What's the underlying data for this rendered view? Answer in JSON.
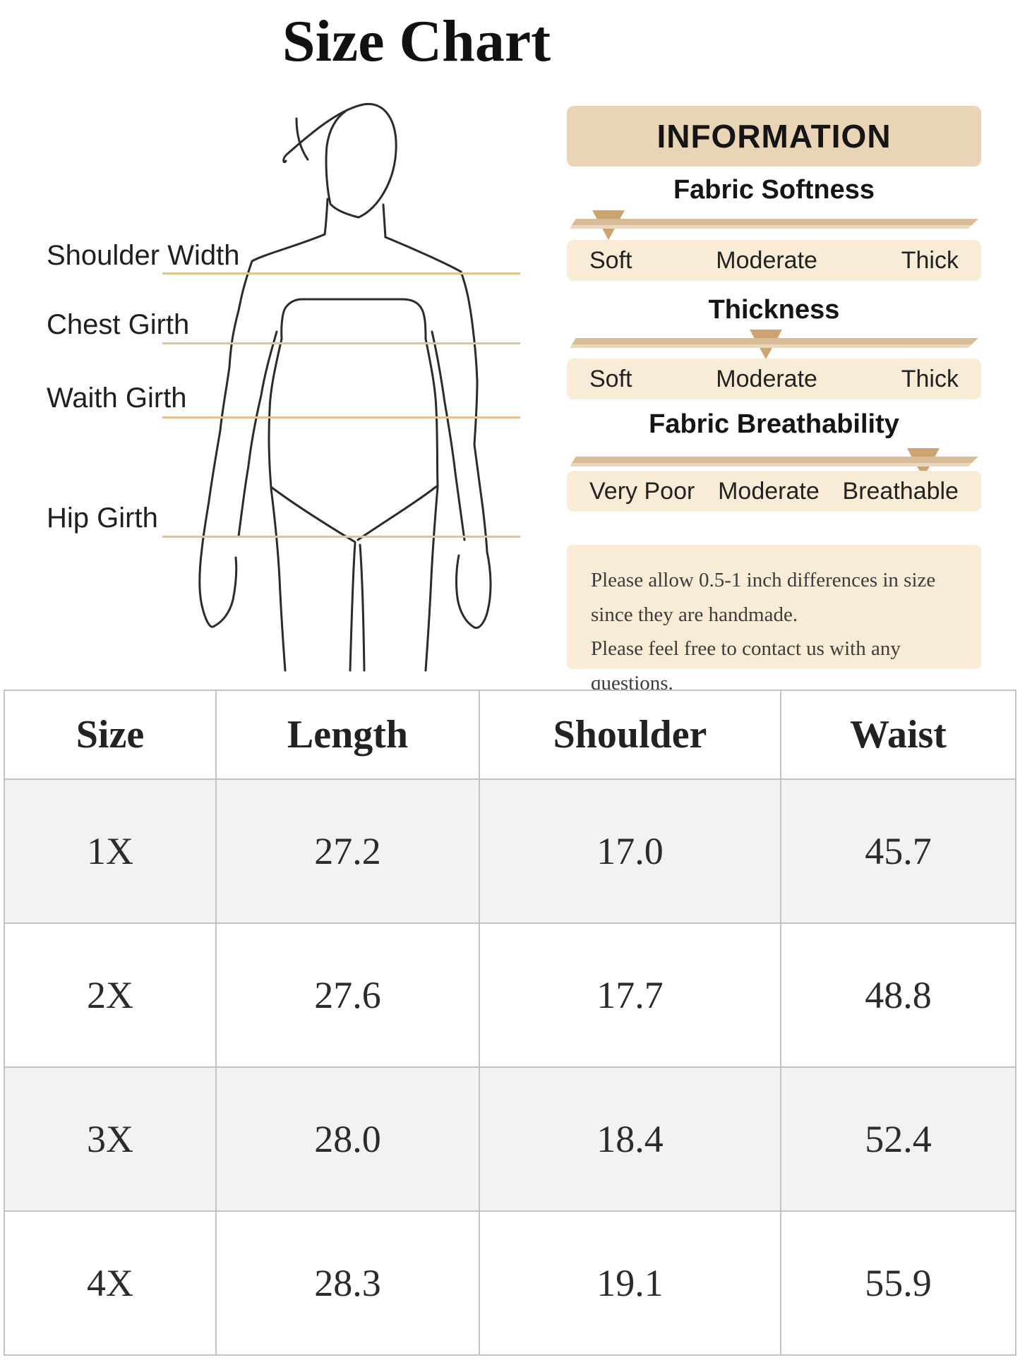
{
  "page": {
    "title": "Size Chart"
  },
  "figure": {
    "labels": [
      {
        "text": "Shoulder Width"
      },
      {
        "text": "Chest Girth"
      },
      {
        "text": "Waith Girth"
      },
      {
        "text": "Hip Girth"
      }
    ]
  },
  "info_panel": {
    "header": "INFORMATION",
    "sections": [
      {
        "title": "Fabric Softness",
        "labels": [
          "Soft",
          "Moderate",
          "Thick"
        ],
        "selected": "Soft",
        "marker_pos": "10%"
      },
      {
        "title": "Thickness",
        "labels": [
          "Soft",
          "Moderate",
          "Thick"
        ],
        "selected": "Moderate",
        "marker_pos": "48%"
      },
      {
        "title": "Fabric Breathability",
        "labels": [
          "Very Poor",
          "Moderate",
          "Breathable"
        ],
        "selected": "Breathable",
        "marker_pos": "86%"
      }
    ],
    "note_lines": [
      "Please allow 0.5-1 inch differences in size",
      "since they are handmade.",
      "Please feel free to contact us with any questions."
    ]
  },
  "size_table": {
    "columns": [
      "Size",
      "Length",
      "Shoulder",
      "Waist"
    ],
    "rows": [
      [
        "1X",
        "27.2",
        "17.0",
        "45.7"
      ],
      [
        "2X",
        "27.6",
        "17.7",
        "48.8"
      ],
      [
        "3X",
        "28.0",
        "18.4",
        "52.4"
      ],
      [
        "4X",
        "28.3",
        "19.1",
        "55.9"
      ]
    ]
  },
  "colors": {
    "info_header_bg": "#e9d4b6",
    "strip_bg": "#f9ecd6",
    "slider_bar": "#d8bb97",
    "marker": "#cda470",
    "measure_line": "#e5c193",
    "table_border": "#c3c3c3",
    "row_alt_bg": "#f2f2f2",
    "text": "#1c1c1c"
  }
}
